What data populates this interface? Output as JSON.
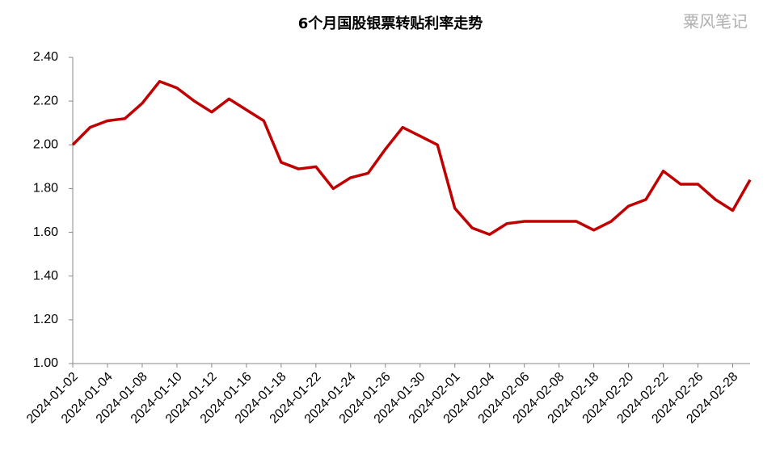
{
  "chart_data": {
    "type": "line",
    "title": "6个月国股银票转贴利率走势",
    "watermark": "粟风笔记",
    "categories": [
      "2024-01-02",
      null,
      "2024-01-04",
      null,
      "2024-01-08",
      null,
      "2024-01-10",
      null,
      "2024-01-12",
      null,
      "2024-01-16",
      null,
      "2024-01-18",
      null,
      "2024-01-22",
      null,
      "2024-01-24",
      null,
      "2024-01-26",
      null,
      "2024-01-30",
      null,
      "2024-02-01",
      null,
      "2024-02-04",
      null,
      "2024-02-06",
      null,
      "2024-02-08",
      null,
      "2024-02-18",
      null,
      "2024-02-20",
      null,
      "2024-02-22",
      null,
      "2024-02-26",
      null,
      "2024-02-28",
      null
    ],
    "values": [
      2.0,
      2.08,
      2.11,
      2.12,
      2.19,
      2.29,
      2.26,
      2.2,
      2.15,
      2.21,
      2.16,
      2.11,
      1.92,
      1.89,
      1.9,
      1.8,
      1.85,
      1.87,
      1.98,
      2.08,
      2.04,
      2.0,
      1.71,
      1.62,
      1.59,
      1.64,
      1.65,
      1.65,
      1.65,
      1.65,
      1.61,
      1.65,
      1.72,
      1.75,
      1.88,
      1.82,
      1.82,
      1.75,
      1.7,
      1.84
    ],
    "color": "#c00000",
    "ylim": [
      1.0,
      2.4
    ],
    "yticks": [
      {
        "value": 1.0,
        "label": "1.00"
      },
      {
        "value": 1.2,
        "label": "1.20"
      },
      {
        "value": 1.4,
        "label": "1.40"
      },
      {
        "value": 1.6,
        "label": "1.60"
      },
      {
        "value": 1.8,
        "label": "1.80"
      },
      {
        "value": 2.0,
        "label": "2.00"
      },
      {
        "value": 2.2,
        "label": "2.20"
      },
      {
        "value": 2.4,
        "label": "2.40"
      }
    ],
    "grid": false
  }
}
